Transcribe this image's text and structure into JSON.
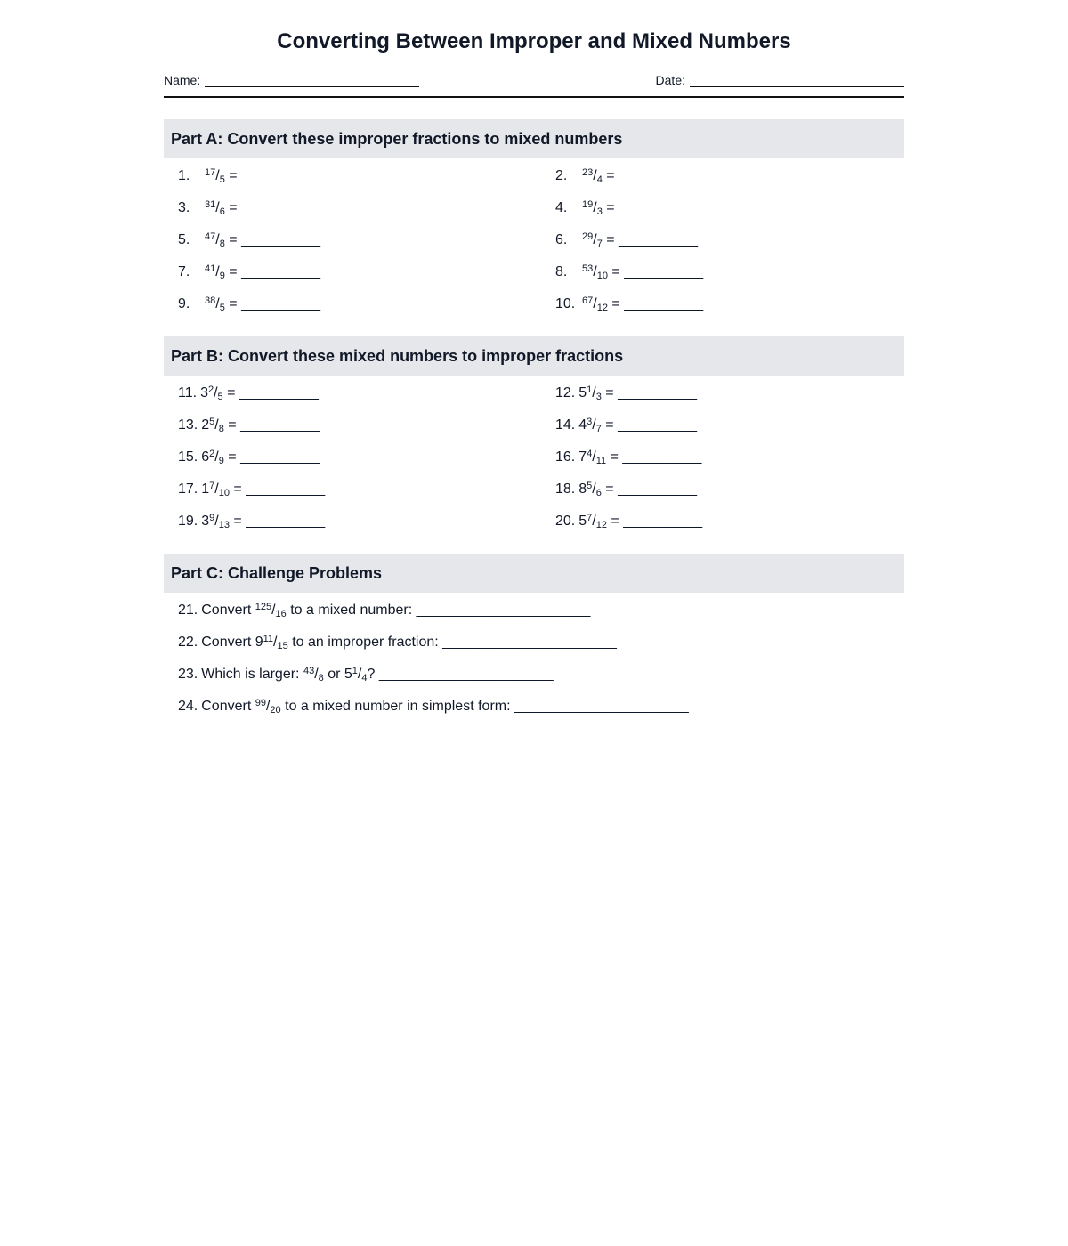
{
  "title": "Converting Between Improper and Mixed Numbers",
  "name_label": "Name:",
  "date_label": "Date:",
  "blank_short": "__________",
  "blank_long": "______________________",
  "sections": [
    {
      "heading": "Part A: Convert these improper fractions to mixed numbers",
      "problems": [
        {
          "n": "1.",
          "num": "17",
          "den": "5"
        },
        {
          "n": "2.",
          "num": "23",
          "den": "4"
        },
        {
          "n": "3.",
          "num": "31",
          "den": "6"
        },
        {
          "n": "4.",
          "num": "19",
          "den": "3"
        },
        {
          "n": "5.",
          "num": "47",
          "den": "8"
        },
        {
          "n": "6.",
          "num": "29",
          "den": "7"
        },
        {
          "n": "7.",
          "num": "41",
          "den": "9"
        },
        {
          "n": "8.",
          "num": "53",
          "den": "10"
        },
        {
          "n": "9.",
          "num": "38",
          "den": "5"
        },
        {
          "n": "10.",
          "num": "67",
          "den": "12"
        }
      ]
    },
    {
      "heading": "Part B: Convert these mixed numbers to improper fractions",
      "problems": [
        {
          "n": "11.",
          "whole": "3",
          "num": "2",
          "den": "5"
        },
        {
          "n": "12.",
          "whole": "5",
          "num": "1",
          "den": "3"
        },
        {
          "n": "13.",
          "whole": "2",
          "num": "5",
          "den": "8"
        },
        {
          "n": "14.",
          "whole": "4",
          "num": "3",
          "den": "7"
        },
        {
          "n": "15.",
          "whole": "6",
          "num": "2",
          "den": "9"
        },
        {
          "n": "16.",
          "whole": "7",
          "num": "4",
          "den": "11"
        },
        {
          "n": "17.",
          "whole": "1",
          "num": "7",
          "den": "10"
        },
        {
          "n": "18.",
          "whole": "8",
          "num": "5",
          "den": "6"
        },
        {
          "n": "19.",
          "whole": "3",
          "num": "9",
          "den": "13"
        },
        {
          "n": "20.",
          "whole": "5",
          "num": "7",
          "den": "12"
        }
      ]
    },
    {
      "heading": "Part C: Challenge Problems",
      "problems": [
        {
          "n": "21.",
          "parts": [
            {
              "t": "Convert "
            },
            {
              "num": "125",
              "den": "16"
            },
            {
              "t": " to a mixed number: "
            }
          ]
        },
        {
          "n": "22.",
          "parts": [
            {
              "t": "Convert 9"
            },
            {
              "num": "11",
              "den": "15"
            },
            {
              "t": " to an improper fraction: "
            }
          ]
        },
        {
          "n": "23.",
          "parts": [
            {
              "t": "Which is larger: "
            },
            {
              "num": "43",
              "den": "8"
            },
            {
              "t": " or 5"
            },
            {
              "num": "1",
              "den": "4"
            },
            {
              "t": "? "
            }
          ]
        },
        {
          "n": "24.",
          "parts": [
            {
              "t": "Convert "
            },
            {
              "num": "99",
              "den": "20"
            },
            {
              "t": " to a mixed number in simplest form: "
            }
          ]
        }
      ]
    }
  ]
}
